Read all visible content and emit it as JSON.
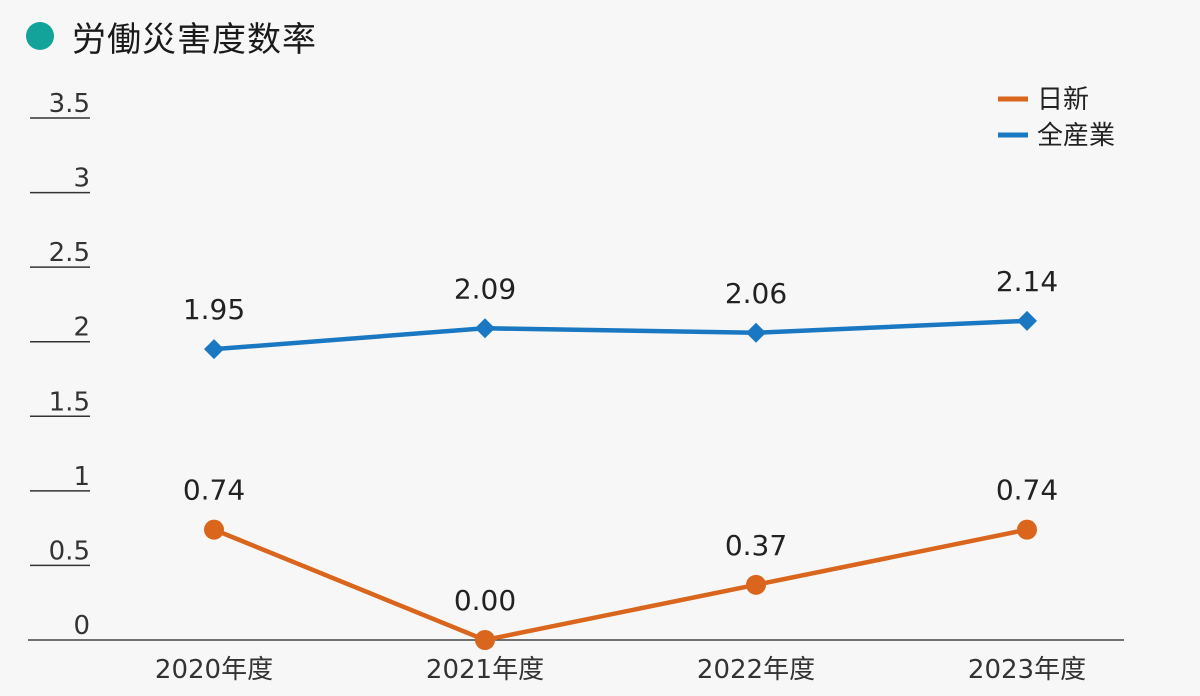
{
  "title": "労働災害度数率",
  "colors": {
    "accent": "#13a39a",
    "nisshin": "#d9661c",
    "all_industry": "#1a78c2"
  },
  "chart_data": {
    "type": "line",
    "title": "労働災害度数率",
    "categories": [
      "2020年度",
      "2021年度",
      "2022年度",
      "2023年度"
    ],
    "ylim": [
      0,
      3.5
    ],
    "yticks": [
      "0",
      "0.5",
      "1",
      "1.5",
      "2",
      "2.5",
      "3",
      "3.5"
    ],
    "yticks_values": [
      0,
      0.5,
      1,
      1.5,
      2,
      2.5,
      3,
      3.5
    ],
    "legend_position": "top-right",
    "series": [
      {
        "name": "日新",
        "color": "#d9661c",
        "marker": "circle",
        "values": [
          0.74,
          0.0,
          0.37,
          0.74
        ],
        "labels": [
          "0.74",
          "0.00",
          "0.37",
          "0.74"
        ]
      },
      {
        "name": "全産業",
        "color": "#1a78c2",
        "marker": "diamond",
        "values": [
          1.95,
          2.09,
          2.06,
          2.14
        ],
        "labels": [
          "1.95",
          "2.09",
          "2.06",
          "2.14"
        ]
      }
    ]
  }
}
